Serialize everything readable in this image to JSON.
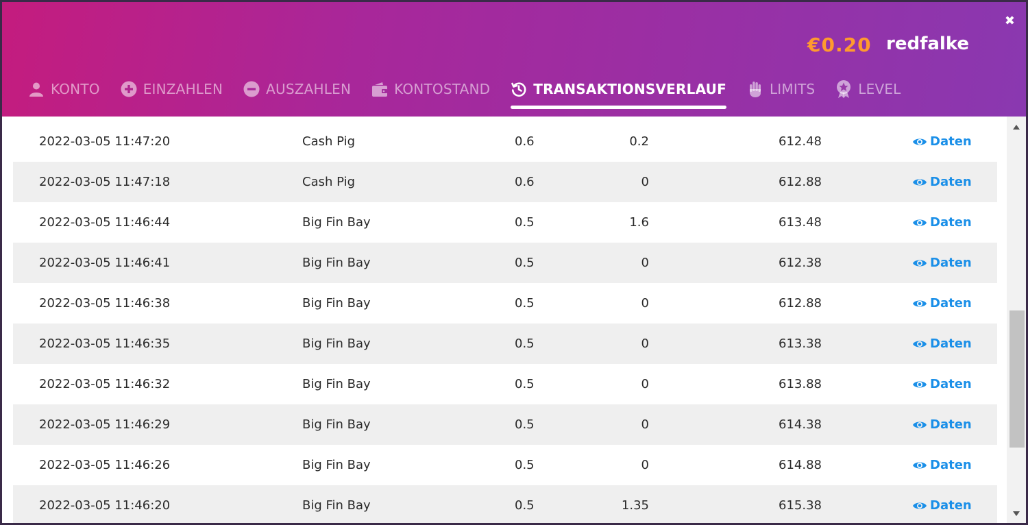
{
  "header": {
    "balance": "€0.20",
    "username": "redfalke",
    "close_label": "✖"
  },
  "tabs": [
    {
      "label": "KONTO",
      "icon": "user-icon",
      "active": false
    },
    {
      "label": "EINZAHLEN",
      "icon": "plus-circle-icon",
      "active": false
    },
    {
      "label": "AUSZAHLEN",
      "icon": "minus-circle-icon",
      "active": false
    },
    {
      "label": "KONTOSTAND",
      "icon": "wallet-icon",
      "active": false
    },
    {
      "label": "TRANSAKTIONSVERLAUF",
      "icon": "history-icon",
      "active": true
    },
    {
      "label": "LIMITS",
      "icon": "hand-icon",
      "active": false
    },
    {
      "label": "LEVEL",
      "icon": "medal-icon",
      "active": false
    }
  ],
  "details_label": "Daten",
  "rows": [
    {
      "date": "2022-03-05 11:47:20",
      "game": "Cash Pig",
      "bet": "0.6",
      "win": "0.2",
      "balance": "612.48"
    },
    {
      "date": "2022-03-05 11:47:18",
      "game": "Cash Pig",
      "bet": "0.6",
      "win": "0",
      "balance": "612.88"
    },
    {
      "date": "2022-03-05 11:46:44",
      "game": "Big Fin Bay",
      "bet": "0.5",
      "win": "1.6",
      "balance": "613.48"
    },
    {
      "date": "2022-03-05 11:46:41",
      "game": "Big Fin Bay",
      "bet": "0.5",
      "win": "0",
      "balance": "612.38"
    },
    {
      "date": "2022-03-05 11:46:38",
      "game": "Big Fin Bay",
      "bet": "0.5",
      "win": "0",
      "balance": "612.88"
    },
    {
      "date": "2022-03-05 11:46:35",
      "game": "Big Fin Bay",
      "bet": "0.5",
      "win": "0",
      "balance": "613.38"
    },
    {
      "date": "2022-03-05 11:46:32",
      "game": "Big Fin Bay",
      "bet": "0.5",
      "win": "0",
      "balance": "613.88"
    },
    {
      "date": "2022-03-05 11:46:29",
      "game": "Big Fin Bay",
      "bet": "0.5",
      "win": "0",
      "balance": "614.38"
    },
    {
      "date": "2022-03-05 11:46:26",
      "game": "Big Fin Bay",
      "bet": "0.5",
      "win": "0",
      "balance": "614.88"
    },
    {
      "date": "2022-03-05 11:46:20",
      "game": "Big Fin Bay",
      "bet": "0.5",
      "win": "1.35",
      "balance": "615.38"
    }
  ],
  "colors": {
    "balance": "#ff9a2e",
    "link": "#1a8fe8",
    "row_shade": "#efefef"
  }
}
